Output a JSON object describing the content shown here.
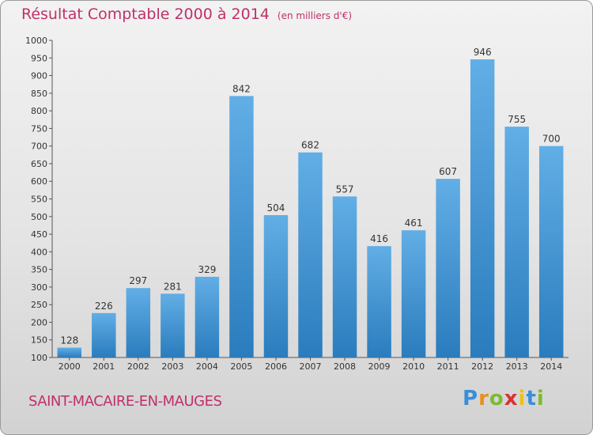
{
  "header": {
    "title": "Résultat Comptable 2000 à 2014",
    "unit": "(en milliers d'€)"
  },
  "footer": {
    "commune": "SAINT-MACAIRE-EN-MAUGES",
    "logo": "Proxiti"
  },
  "colors": {
    "title": "#c0306a",
    "bar_light": "#62aee6",
    "bar_dark": "#2a7cbd",
    "logo_letters": [
      "#3a8fd6",
      "#e8901f",
      "#7dbb2f",
      "#d8332f",
      "#e8c21a",
      "#3a8fd6",
      "#7dbb2f"
    ]
  },
  "chart_data": {
    "type": "bar",
    "title": "Résultat Comptable 2000 à 2014",
    "subtitle": "(en milliers d'€)",
    "categories": [
      "2000",
      "2001",
      "2002",
      "2003",
      "2004",
      "2005",
      "2006",
      "2007",
      "2008",
      "2009",
      "2010",
      "2011",
      "2012",
      "2013",
      "2014"
    ],
    "values": [
      128,
      226,
      297,
      281,
      329,
      842,
      504,
      682,
      557,
      416,
      461,
      607,
      946,
      755,
      700
    ],
    "ylim": [
      100,
      1000
    ],
    "ytick_step": 50,
    "grid": false,
    "legend": "none"
  }
}
